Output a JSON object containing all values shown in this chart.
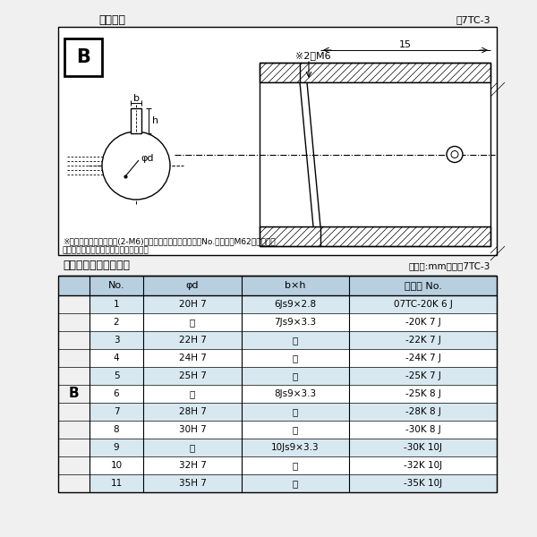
{
  "title_diagram": "軸穴形状",
  "fig_ref_diagram": "図7TC-3",
  "title_table": "軸穴形状コード一覧表",
  "table_unit": "（単位:mm）　表7TC-3",
  "note_line1": "※セットボルト用タップ(2-M6)が必要な場合は右記コードNo.の末尾にM62を付ける。",
  "note_line2": "（セットボルトは付属されています。）",
  "label_B": "B",
  "label_b": "b",
  "label_h": "h",
  "label_phid": "φd",
  "label_2M6": "※2－M6",
  "label_15": "15",
  "col_headers": [
    "No.",
    "φd",
    "b×h",
    "コード No."
  ],
  "row_label": "B",
  "rows": [
    [
      "1",
      "20H 7",
      "6Js9×2.8",
      "07TC-20K 6 J"
    ],
    [
      "2",
      "〃",
      "7Js9×3.3",
      "-20K 7 J"
    ],
    [
      "3",
      "22H 7",
      "〃",
      "-22K 7 J"
    ],
    [
      "4",
      "24H 7",
      "〃",
      "-24K 7 J"
    ],
    [
      "5",
      "25H 7",
      "〃",
      "-25K 7 J"
    ],
    [
      "6",
      "〃",
      "8Js9×3.3",
      "-25K 8 J"
    ],
    [
      "7",
      "28H 7",
      "〃",
      "-28K 8 J"
    ],
    [
      "8",
      "30H 7",
      "〃",
      "-30K 8 J"
    ],
    [
      "9",
      "〃",
      "10Js9×3.3",
      "-30K 10J"
    ],
    [
      "10",
      "32H 7",
      "〃",
      "-32K 10J"
    ],
    [
      "11",
      "35H 7",
      "〃",
      "-35K 10J"
    ]
  ],
  "bg_color": "#f0f0f0",
  "diagram_bg": "#ffffff",
  "table_header_bg": "#b8cfe0",
  "table_row_bg1": "#d8e8f0",
  "table_row_bg2": "#ffffff",
  "border_color": "#000000",
  "text_color": "#000000"
}
